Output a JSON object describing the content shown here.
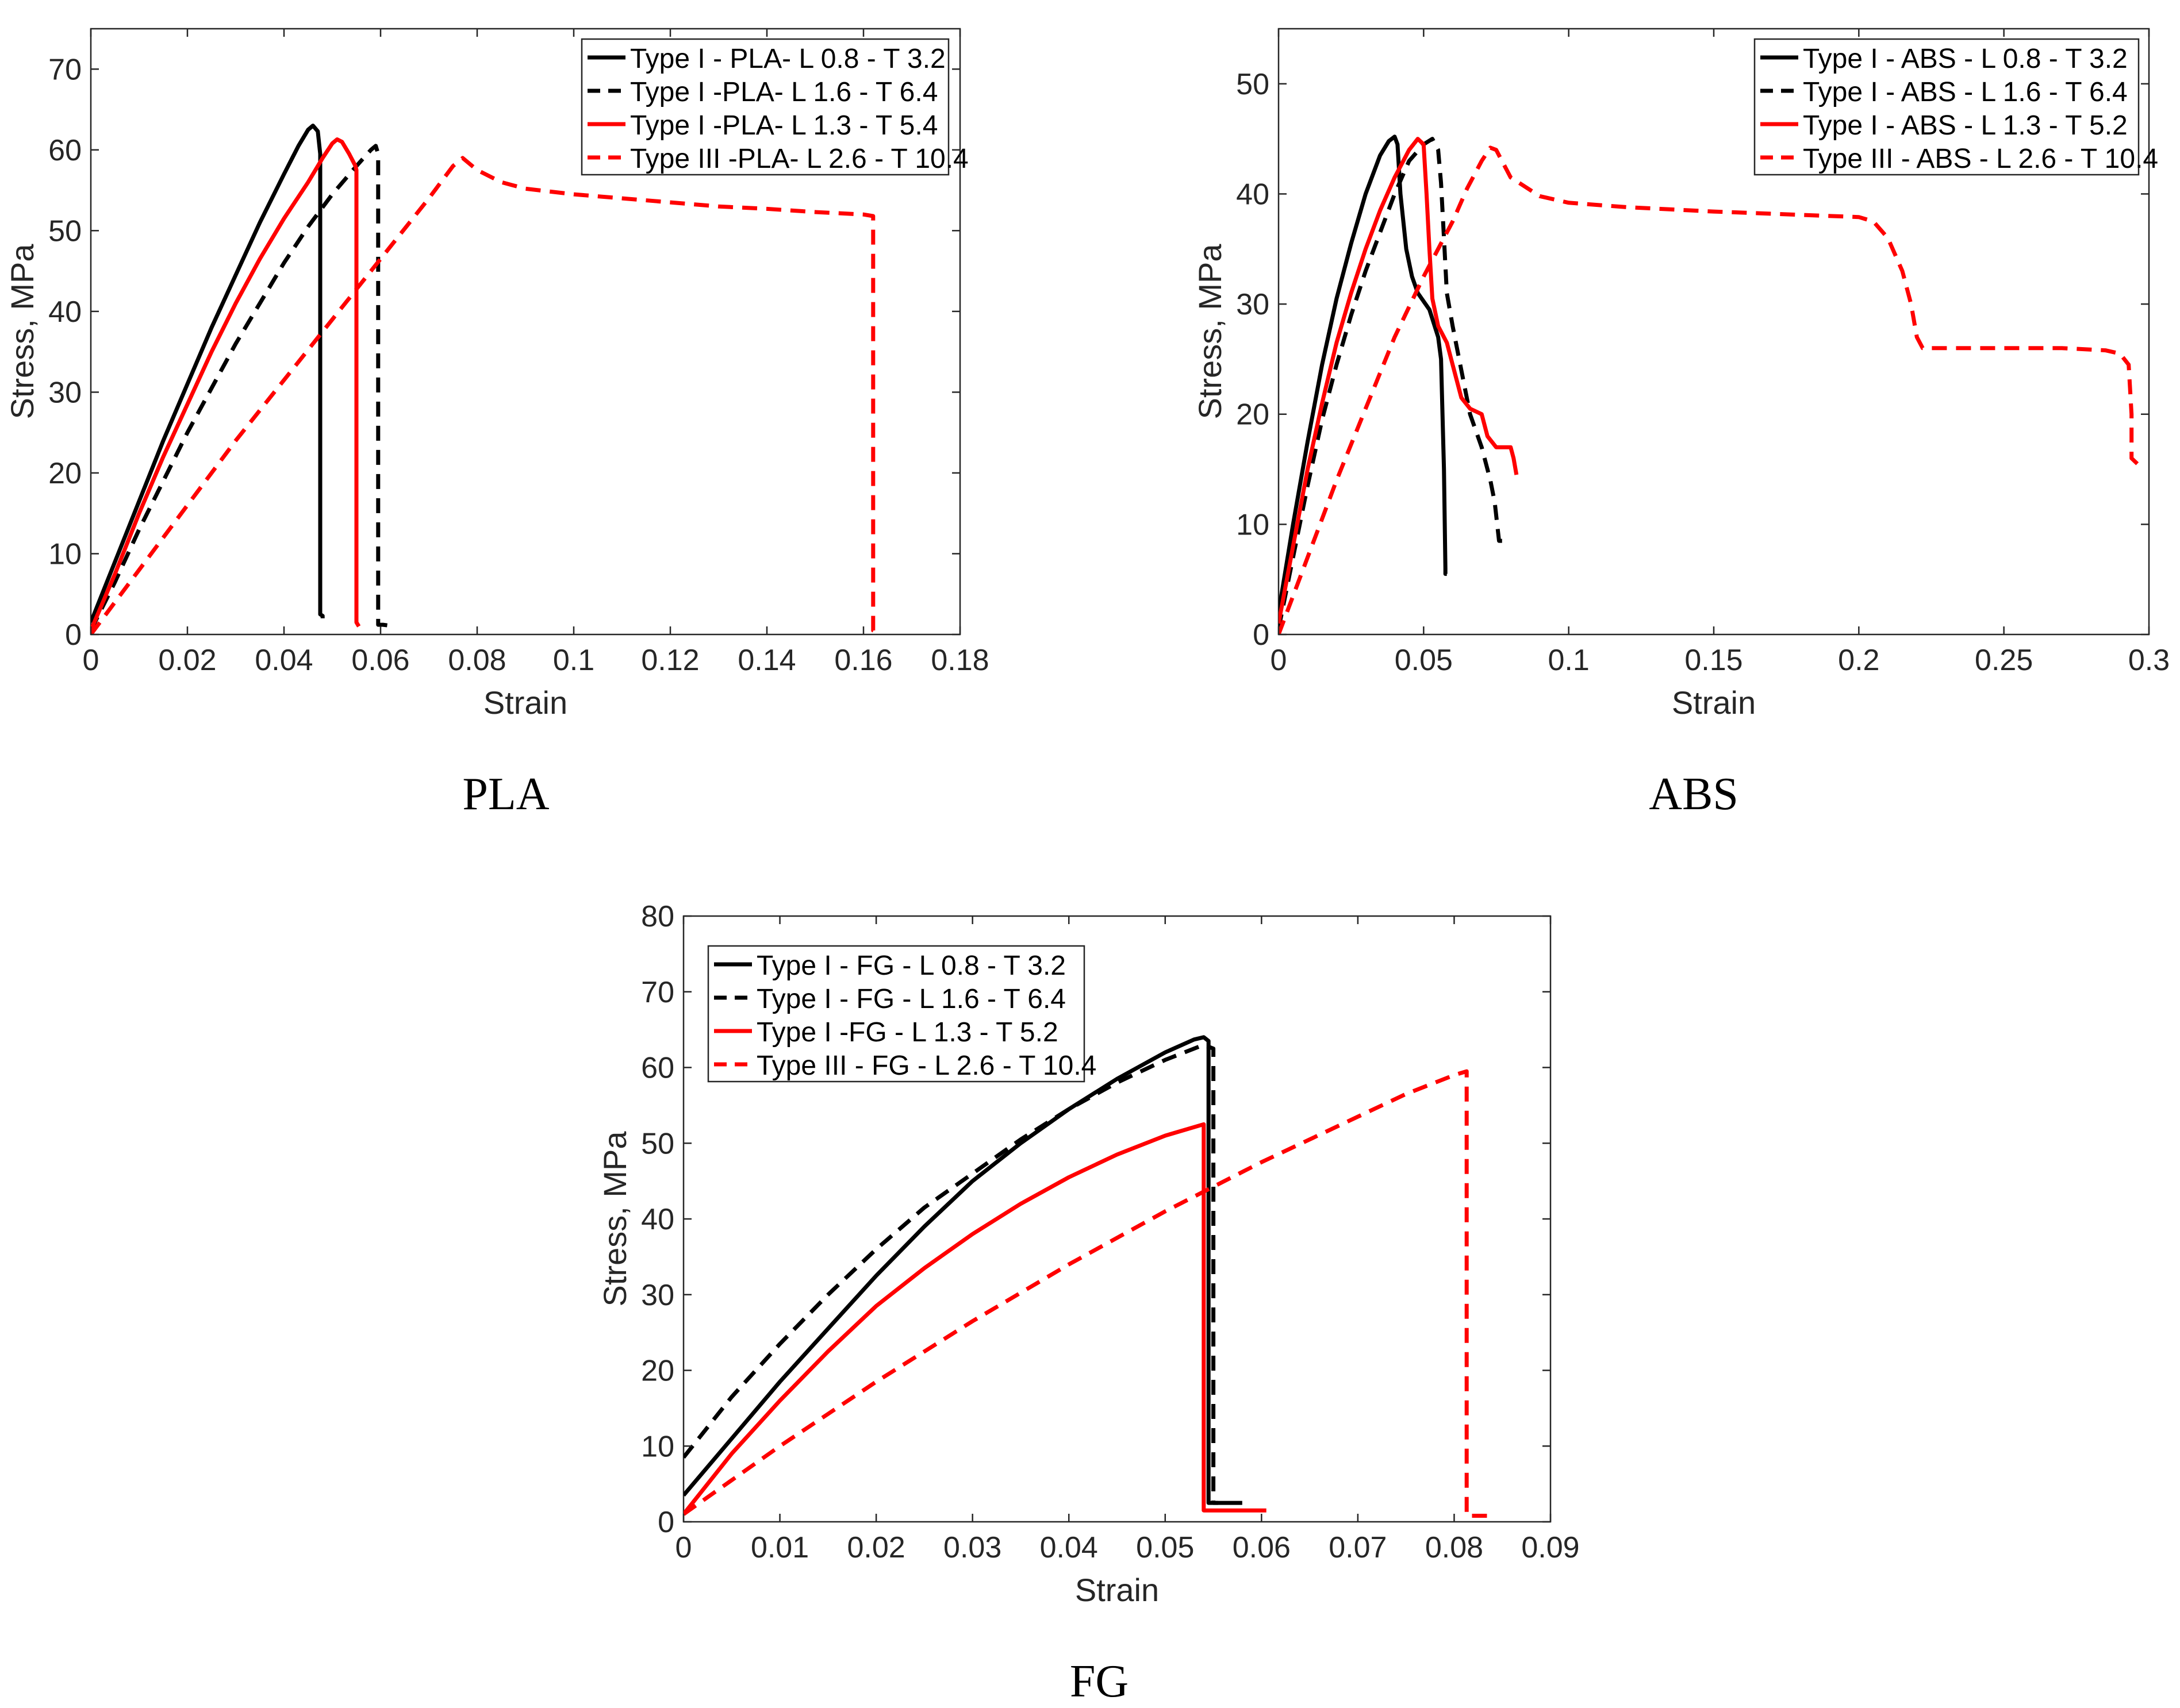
{
  "chart_data": [
    {
      "type": "line",
      "caption": "PLA",
      "xlabel": "Strain",
      "ylabel": "Stress, MPa",
      "xlim": [
        0,
        0.18
      ],
      "ylim": [
        0,
        75
      ],
      "xticks": [
        0,
        0.02,
        0.04,
        0.06,
        0.08,
        0.1,
        0.12,
        0.14,
        0.16,
        0.18
      ],
      "xtick_labels": [
        "0",
        "0.02",
        "0.04",
        "0.06",
        "0.08",
        "0.1",
        "0.12",
        "0.14",
        "0.16",
        "0.18"
      ],
      "yticks": [
        0,
        10,
        20,
        30,
        40,
        50,
        60,
        70
      ],
      "ytick_labels": [
        "0",
        "10",
        "20",
        "30",
        "40",
        "50",
        "60",
        "70"
      ],
      "grid": false,
      "legend_position": "top-right",
      "series": [
        {
          "name": "Type I - PLA- L 0.8 - T 3.2",
          "color": "#000000",
          "dash": "solid",
          "x": [
            0,
            0.005,
            0.01,
            0.015,
            0.02,
            0.025,
            0.03,
            0.035,
            0.04,
            0.043,
            0.045,
            0.046,
            0.047,
            0.0475,
            0.0475,
            0.048,
            0.048
          ],
          "y": [
            1.5,
            9,
            16.5,
            24,
            31,
            38,
            44.5,
            51,
            57,
            60.5,
            62.5,
            63,
            62.3,
            59.5,
            2.5,
            2.3,
            2
          ]
        },
        {
          "name": "Type I -PLA- L 1.6 - T 6.4",
          "color": "#000000",
          "dash": "dashed",
          "x": [
            0,
            0.005,
            0.01,
            0.015,
            0.02,
            0.025,
            0.03,
            0.035,
            0.04,
            0.045,
            0.05,
            0.055,
            0.058,
            0.059,
            0.0595,
            0.0595,
            0.0605,
            0.063
          ],
          "y": [
            0.5,
            6.5,
            13,
            19,
            25,
            30.5,
            36,
            41,
            46,
            50.5,
            54.5,
            58,
            60,
            60.5,
            59.5,
            1.2,
            1.2,
            1
          ]
        },
        {
          "name": "Type I -PLA- L 1.3 - T 5.4",
          "color": "#ff0000",
          "dash": "solid",
          "x": [
            0,
            0.005,
            0.01,
            0.015,
            0.02,
            0.025,
            0.03,
            0.035,
            0.04,
            0.045,
            0.048,
            0.05,
            0.051,
            0.052,
            0.0535,
            0.0548,
            0.055,
            0.055,
            0.0555
          ],
          "y": [
            0.5,
            7.5,
            15,
            22,
            28.5,
            35,
            41,
            46.5,
            51.5,
            56,
            59,
            60.8,
            61.3,
            61,
            59.5,
            58,
            57.5,
            1.5,
            1
          ]
        },
        {
          "name": "Type III -PLA- L 2.6 - T 10.4",
          "color": "#ff0000",
          "dash": "dashed",
          "x": [
            0,
            0.01,
            0.02,
            0.03,
            0.04,
            0.05,
            0.06,
            0.07,
            0.075,
            0.077,
            0.08,
            0.085,
            0.09,
            0.1,
            0.11,
            0.12,
            0.13,
            0.14,
            0.15,
            0.16,
            0.162,
            0.162,
            0.163
          ],
          "y": [
            0,
            8,
            16,
            24,
            31.5,
            39,
            46.5,
            54,
            58,
            59,
            57.5,
            56,
            55.2,
            54.5,
            54,
            53.5,
            53,
            52.7,
            52.3,
            52,
            51.8,
            0.5,
            0.2
          ]
        }
      ]
    },
    {
      "type": "line",
      "caption": "ABS",
      "xlabel": "Strain",
      "ylabel": "Stress, MPa",
      "xlim": [
        0,
        0.3
      ],
      "ylim": [
        0,
        55
      ],
      "xticks": [
        0,
        0.05,
        0.1,
        0.15,
        0.2,
        0.25,
        0.3
      ],
      "xtick_labels": [
        "0",
        "0.05",
        "0.1",
        "0.15",
        "0.2",
        "0.25",
        "0.3"
      ],
      "yticks": [
        0,
        10,
        20,
        30,
        40,
        50
      ],
      "ytick_labels": [
        "0",
        "10",
        "20",
        "30",
        "40",
        "50"
      ],
      "grid": false,
      "legend_position": "top-right",
      "series": [
        {
          "name": "Type I - ABS - L 0.8 - T 3.2",
          "color": "#000000",
          "dash": "solid",
          "x": [
            0,
            0.005,
            0.01,
            0.015,
            0.02,
            0.025,
            0.03,
            0.035,
            0.038,
            0.04,
            0.041,
            0.042,
            0.044,
            0.046,
            0.048,
            0.052,
            0.055,
            0.056,
            0.057,
            0.0575,
            0.0575,
            0.058
          ],
          "y": [
            2,
            10,
            17.5,
            24.5,
            30.5,
            35.5,
            40,
            43.5,
            44.8,
            45.2,
            44.5,
            40,
            35,
            32.5,
            31,
            29.5,
            27,
            25,
            15,
            6,
            5.5,
            5.5
          ]
        },
        {
          "name": "Type I - ABS - L 1.6 - T 6.4",
          "color": "#000000",
          "dash": "dashed",
          "x": [
            0,
            0.005,
            0.01,
            0.015,
            0.02,
            0.025,
            0.03,
            0.035,
            0.04,
            0.045,
            0.05,
            0.053,
            0.055,
            0.056,
            0.057,
            0.058,
            0.06,
            0.063,
            0.066,
            0.07,
            0.073,
            0.0745,
            0.076,
            0.078
          ],
          "y": [
            0.5,
            7,
            13.5,
            19.5,
            24.5,
            29,
            33,
            36.5,
            40,
            43,
            44.5,
            45,
            44,
            41,
            36,
            31,
            28,
            24,
            20,
            17,
            14,
            12,
            8.5,
            8.5
          ]
        },
        {
          "name": "Type I - ABS - L 1.3 - T 5.2",
          "color": "#ff0000",
          "dash": "solid",
          "x": [
            0,
            0.005,
            0.01,
            0.015,
            0.02,
            0.025,
            0.03,
            0.035,
            0.04,
            0.045,
            0.048,
            0.05,
            0.051,
            0.052,
            0.053,
            0.055,
            0.058,
            0.061,
            0.063,
            0.066,
            0.07,
            0.072,
            0.075,
            0.08,
            0.081,
            0.082
          ],
          "y": [
            1,
            8,
            15,
            21,
            26.5,
            31,
            35,
            38.5,
            41.5,
            44,
            45,
            44.5,
            40,
            35,
            30.5,
            28,
            26.5,
            23.5,
            21.5,
            20.5,
            20,
            18,
            17,
            17,
            16,
            14.5
          ]
        },
        {
          "name": "Type III - ABS - L 2.6 - T 10.4",
          "color": "#ff0000",
          "dash": "dashed",
          "x": [
            0,
            0.01,
            0.02,
            0.03,
            0.04,
            0.05,
            0.06,
            0.065,
            0.07,
            0.073,
            0.075,
            0.08,
            0.09,
            0.1,
            0.12,
            0.15,
            0.18,
            0.2,
            0.205,
            0.21,
            0.215,
            0.218,
            0.22,
            0.222,
            0.23,
            0.25,
            0.27,
            0.285,
            0.29,
            0.293,
            0.294,
            0.294,
            0.296
          ],
          "y": [
            0,
            7,
            14,
            20.5,
            27,
            32.5,
            37.5,
            40.5,
            43,
            44.2,
            44,
            41.5,
            39.8,
            39.2,
            38.8,
            38.4,
            38.1,
            37.9,
            37.5,
            36,
            33,
            30,
            27,
            26,
            26,
            26,
            26,
            25.8,
            25.5,
            24.5,
            20,
            16,
            15.5
          ]
        }
      ]
    },
    {
      "type": "line",
      "caption": "FG",
      "xlabel": "Strain",
      "ylabel": "Stress, MPa",
      "xlim": [
        0,
        0.09
      ],
      "ylim": [
        0,
        80
      ],
      "xticks": [
        0,
        0.01,
        0.02,
        0.03,
        0.04,
        0.05,
        0.06,
        0.07,
        0.08,
        0.09
      ],
      "xtick_labels": [
        "0",
        "0.01",
        "0.02",
        "0.03",
        "0.04",
        "0.05",
        "0.06",
        "0.07",
        "0.08",
        "0.09"
      ],
      "yticks": [
        0,
        10,
        20,
        30,
        40,
        50,
        60,
        70,
        80
      ],
      "ytick_labels": [
        "0",
        "10",
        "20",
        "30",
        "40",
        "50",
        "60",
        "70",
        "80"
      ],
      "grid": false,
      "legend_position": "top-left",
      "series": [
        {
          "name": "Type I - FG - L 0.8 - T 3.2",
          "color": "#000000",
          "dash": "solid",
          "x": [
            0,
            0.005,
            0.01,
            0.015,
            0.02,
            0.025,
            0.03,
            0.035,
            0.04,
            0.045,
            0.05,
            0.053,
            0.054,
            0.0545,
            0.0545,
            0.056,
            0.058
          ],
          "y": [
            3.5,
            11,
            18.5,
            25.5,
            32.5,
            39,
            45,
            50,
            54.5,
            58.5,
            62,
            63.7,
            64,
            63.5,
            2.5,
            2.5,
            2.5
          ]
        },
        {
          "name": "Type I - FG - L 1.6 - T 6.4",
          "color": "#000000",
          "dash": "dashed",
          "x": [
            0,
            0.005,
            0.01,
            0.015,
            0.02,
            0.025,
            0.03,
            0.035,
            0.04,
            0.045,
            0.05,
            0.054,
            0.055,
            0.055,
            0.0555
          ],
          "y": [
            8.5,
            16.5,
            23.5,
            30,
            36,
            41.5,
            46,
            50.5,
            54.5,
            58,
            61,
            63,
            62.5,
            2.5,
            2.5
          ]
        },
        {
          "name": "Type I -FG - L 1.3 - T 5.2",
          "color": "#ff0000",
          "dash": "solid",
          "x": [
            0,
            0.005,
            0.01,
            0.015,
            0.02,
            0.025,
            0.03,
            0.035,
            0.04,
            0.045,
            0.05,
            0.054,
            0.054,
            0.0605
          ],
          "y": [
            1,
            9,
            16,
            22.5,
            28.5,
            33.5,
            38,
            42,
            45.5,
            48.5,
            51,
            52.5,
            1.5,
            1.5
          ]
        },
        {
          "name": "Type III - FG - L 2.6 - T 10.4",
          "color": "#ff0000",
          "dash": "dashed",
          "x": [
            0,
            0.01,
            0.02,
            0.03,
            0.04,
            0.05,
            0.06,
            0.07,
            0.075,
            0.08,
            0.0813,
            0.0813,
            0.0825,
            0.0835
          ],
          "y": [
            1,
            10,
            18.5,
            26.5,
            34,
            41,
            47.5,
            53.5,
            56.5,
            59,
            59.5,
            0.8,
            0.8,
            0.8
          ]
        }
      ]
    }
  ]
}
